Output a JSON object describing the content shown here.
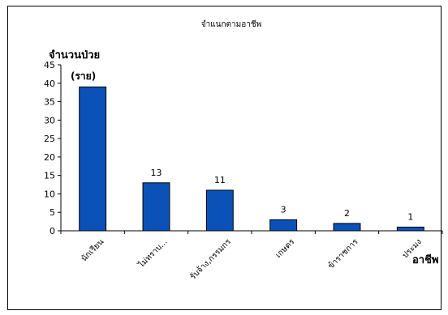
{
  "chart_data": {
    "type": "bar",
    "title": "จำแนกตามอาชีพ",
    "ylabel": "จำนวนป่วย",
    "ylabel_unit": "(ราย)",
    "xlabel": "อาชีพ",
    "categories": [
      "นักเรียน",
      "ไม่ทราบ...",
      "รับจ้าง,กรรมกร",
      "เกษตร",
      "ข้าราชการ",
      "ประมง"
    ],
    "values": [
      39,
      13,
      11,
      3,
      2,
      1
    ],
    "ylim": [
      0,
      45
    ],
    "yticks": [
      0,
      5,
      10,
      15,
      20,
      25,
      30,
      35,
      40,
      45
    ],
    "grid": false,
    "bar_color": "#0a52b8",
    "show_data_labels": true
  }
}
